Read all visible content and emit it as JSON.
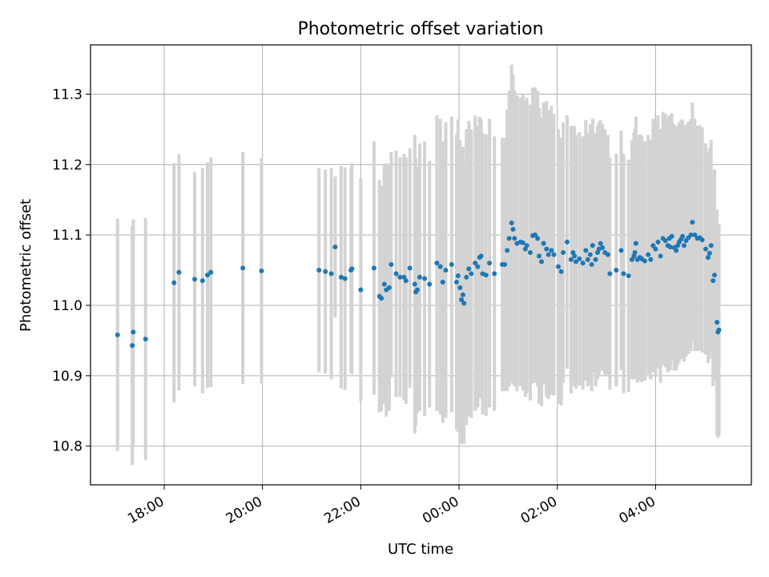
{
  "chart_data": {
    "type": "scatter",
    "title": "Photometric offset variation",
    "xlabel": "UTC time",
    "ylabel": "Photometric offset",
    "x_unit": "hours UTC (values past 24 are after midnight of the next day)",
    "xlim": [
      16.5,
      29.95
    ],
    "ylim": [
      10.745,
      11.37
    ],
    "x_ticks": [
      {
        "value": 18,
        "label": "18:00"
      },
      {
        "value": 20,
        "label": "20:00"
      },
      {
        "value": 22,
        "label": "22:00"
      },
      {
        "value": 24,
        "label": "00:00"
      },
      {
        "value": 26,
        "label": "02:00"
      },
      {
        "value": 28,
        "label": "04:00"
      }
    ],
    "y_ticks": [
      {
        "value": 10.8,
        "label": "10.8"
      },
      {
        "value": 10.9,
        "label": "10.9"
      },
      {
        "value": 11.0,
        "label": "11.0"
      },
      {
        "value": 11.1,
        "label": "11.1"
      },
      {
        "value": 11.2,
        "label": "11.2"
      },
      {
        "value": 11.3,
        "label": "11.3"
      }
    ],
    "grid": true,
    "point_color": "#1f77b4",
    "errorbar_color": "#d3d3d3",
    "series": [
      {
        "points": [
          [
            17.05,
            10.958,
            0.165
          ],
          [
            17.35,
            10.943,
            0.17
          ],
          [
            17.37,
            10.962,
            0.16
          ],
          [
            17.62,
            10.952,
            0.172
          ],
          [
            18.2,
            11.032,
            0.17
          ],
          [
            18.3,
            11.047,
            0.168
          ],
          [
            18.62,
            11.037,
            0.152
          ],
          [
            18.78,
            11.035,
            0.16
          ],
          [
            18.88,
            11.043,
            0.16
          ],
          [
            18.95,
            11.047,
            0.163
          ],
          [
            19.6,
            11.053,
            0.165
          ],
          [
            19.98,
            11.049,
            0.16
          ],
          [
            21.15,
            11.05,
            0.145
          ],
          [
            21.28,
            11.048,
            0.145
          ],
          [
            21.4,
            11.045,
            0.15
          ],
          [
            21.48,
            11.083,
            0.1
          ],
          [
            21.6,
            11.04,
            0.158
          ],
          [
            21.68,
            11.038,
            0.158
          ],
          [
            21.8,
            11.05,
            0.145
          ],
          [
            21.82,
            11.052,
            0.15
          ],
          [
            22.0,
            11.022,
            0.158
          ],
          [
            22.27,
            11.053,
            0.18
          ],
          [
            22.38,
            11.013,
            0.165
          ],
          [
            22.42,
            11.01,
            0.16
          ],
          [
            22.48,
            11.03,
            0.17
          ],
          [
            22.52,
            11.022,
            0.18
          ],
          [
            22.58,
            11.025,
            0.175
          ],
          [
            22.62,
            11.058,
            0.16
          ],
          [
            22.72,
            11.045,
            0.175
          ],
          [
            22.8,
            11.04,
            0.17
          ],
          [
            22.88,
            11.04,
            0.175
          ],
          [
            22.92,
            11.035,
            0.175
          ],
          [
            23.0,
            11.053,
            0.17
          ],
          [
            23.1,
            11.03,
            0.212
          ],
          [
            23.12,
            11.019,
            0.19
          ],
          [
            23.15,
            11.022,
            0.175
          ],
          [
            23.2,
            11.04,
            0.19
          ],
          [
            23.3,
            11.038,
            0.195
          ],
          [
            23.4,
            11.03,
            0.175
          ],
          [
            23.55,
            11.06,
            0.21
          ],
          [
            23.62,
            11.055,
            0.21
          ],
          [
            23.67,
            11.033,
            0.2
          ],
          [
            23.73,
            11.05,
            0.21
          ],
          [
            23.85,
            11.058,
            0.21
          ],
          [
            23.95,
            11.033,
            0.21
          ],
          [
            23.98,
            11.042,
            0.222
          ],
          [
            24.02,
            11.025,
            0.21
          ],
          [
            24.05,
            11.008,
            0.205
          ],
          [
            24.08,
            11.015,
            0.21
          ],
          [
            24.1,
            11.003,
            0.2
          ],
          [
            24.15,
            11.04,
            0.21
          ],
          [
            24.2,
            11.052,
            0.21
          ],
          [
            24.25,
            11.045,
            0.205
          ],
          [
            24.33,
            11.06,
            0.21
          ],
          [
            24.38,
            11.055,
            0.2
          ],
          [
            24.42,
            11.068,
            0.2
          ],
          [
            24.45,
            11.07,
            0.195
          ],
          [
            24.48,
            11.045,
            0.2
          ],
          [
            24.55,
            11.043,
            0.2
          ],
          [
            24.62,
            11.06,
            0.205
          ],
          [
            24.72,
            11.045,
            0.195
          ],
          [
            24.88,
            11.058,
            0.18
          ],
          [
            24.93,
            11.058,
            0.18
          ],
          [
            24.98,
            11.078,
            0.2
          ],
          [
            25.02,
            11.095,
            0.21
          ],
          [
            25.07,
            11.117,
            0.225
          ],
          [
            25.1,
            11.108,
            0.22
          ],
          [
            25.13,
            11.095,
            0.21
          ],
          [
            25.18,
            11.088,
            0.21
          ],
          [
            25.25,
            11.09,
            0.205
          ],
          [
            25.3,
            11.089,
            0.21
          ],
          [
            25.35,
            11.08,
            0.21
          ],
          [
            25.38,
            11.085,
            0.21
          ],
          [
            25.45,
            11.075,
            0.21
          ],
          [
            25.5,
            11.099,
            0.21
          ],
          [
            25.55,
            11.1,
            0.21
          ],
          [
            25.6,
            11.095,
            0.21
          ],
          [
            25.63,
            11.07,
            0.21
          ],
          [
            25.68,
            11.062,
            0.205
          ],
          [
            25.72,
            11.088,
            0.2
          ],
          [
            25.78,
            11.08,
            0.21
          ],
          [
            25.82,
            11.072,
            0.205
          ],
          [
            25.88,
            11.078,
            0.205
          ],
          [
            25.93,
            11.072,
            0.2
          ],
          [
            26.02,
            11.055,
            0.195
          ],
          [
            26.08,
            11.048,
            0.19
          ],
          [
            26.12,
            11.075,
            0.185
          ],
          [
            26.2,
            11.09,
            0.18
          ],
          [
            26.28,
            11.065,
            0.19
          ],
          [
            26.32,
            11.075,
            0.18
          ],
          [
            26.35,
            11.07,
            0.185
          ],
          [
            26.38,
            11.062,
            0.18
          ],
          [
            26.45,
            11.066,
            0.18
          ],
          [
            26.52,
            11.06,
            0.18
          ],
          [
            26.58,
            11.078,
            0.185
          ],
          [
            26.62,
            11.065,
            0.18
          ],
          [
            26.67,
            11.072,
            0.185
          ],
          [
            26.7,
            11.058,
            0.18
          ],
          [
            26.72,
            11.085,
            0.18
          ],
          [
            26.78,
            11.065,
            0.18
          ],
          [
            26.82,
            11.075,
            0.18
          ],
          [
            26.85,
            11.08,
            0.18
          ],
          [
            26.88,
            11.088,
            0.175
          ],
          [
            26.92,
            11.082,
            0.175
          ],
          [
            26.97,
            11.075,
            0.175
          ],
          [
            27.03,
            11.072,
            0.17
          ],
          [
            27.07,
            11.045,
            0.165
          ],
          [
            27.2,
            11.05,
            0.165
          ],
          [
            27.3,
            11.078,
            0.17
          ],
          [
            27.35,
            11.045,
            0.17
          ],
          [
            27.45,
            11.042,
            0.165
          ],
          [
            27.52,
            11.065,
            0.17
          ],
          [
            27.56,
            11.07,
            0.175
          ],
          [
            27.58,
            11.075,
            0.175
          ],
          [
            27.6,
            11.088,
            0.18
          ],
          [
            27.63,
            11.065,
            0.175
          ],
          [
            27.68,
            11.068,
            0.175
          ],
          [
            27.72,
            11.066,
            0.175
          ],
          [
            27.78,
            11.063,
            0.17
          ],
          [
            27.85,
            11.072,
            0.17
          ],
          [
            27.9,
            11.065,
            0.17
          ],
          [
            27.95,
            11.085,
            0.18
          ],
          [
            28.0,
            11.08,
            0.18
          ],
          [
            28.05,
            11.09,
            0.18
          ],
          [
            28.1,
            11.07,
            0.18
          ],
          [
            28.15,
            11.095,
            0.18
          ],
          [
            28.2,
            11.092,
            0.18
          ],
          [
            28.25,
            11.085,
            0.18
          ],
          [
            28.28,
            11.095,
            0.175
          ],
          [
            28.3,
            11.083,
            0.175
          ],
          [
            28.33,
            11.098,
            0.175
          ],
          [
            28.38,
            11.082,
            0.175
          ],
          [
            28.42,
            11.078,
            0.17
          ],
          [
            28.45,
            11.085,
            0.17
          ],
          [
            28.48,
            11.09,
            0.17
          ],
          [
            28.52,
            11.094,
            0.17
          ],
          [
            28.55,
            11.098,
            0.165
          ],
          [
            28.58,
            11.085,
            0.165
          ],
          [
            28.62,
            11.092,
            0.165
          ],
          [
            28.67,
            11.096,
            0.165
          ],
          [
            28.72,
            11.1,
            0.165
          ],
          [
            28.75,
            11.118,
            0.17
          ],
          [
            28.8,
            11.1,
            0.165
          ],
          [
            28.85,
            11.095,
            0.16
          ],
          [
            28.9,
            11.096,
            0.16
          ],
          [
            28.95,
            11.093,
            0.16
          ],
          [
            29.02,
            11.08,
            0.15
          ],
          [
            29.07,
            11.068,
            0.15
          ],
          [
            29.1,
            11.074,
            0.15
          ],
          [
            29.13,
            11.085,
            0.15
          ],
          [
            29.17,
            11.035,
            0.15
          ],
          [
            29.2,
            11.043,
            0.15
          ],
          [
            29.25,
            10.976,
            0.16
          ],
          [
            29.27,
            10.962,
            0.15
          ],
          [
            29.29,
            10.965,
            0.15
          ]
        ]
      }
    ]
  }
}
